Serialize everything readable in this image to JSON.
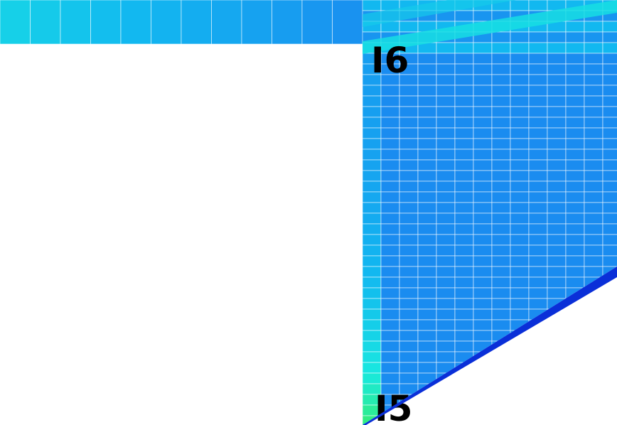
{
  "labels": {
    "node_top": "I6",
    "node_bottom": "I5"
  },
  "colors": {
    "background": "#ffffff",
    "mesh_lines": "#ffffff",
    "edge_strip": "#0a2fd8",
    "colormap": [
      "#1f78e8",
      "#1a8cf0",
      "#12b8f0",
      "#19e8e0",
      "#3aef60",
      "#36e81c",
      "#aef020",
      "#fff21a",
      "#ffae18",
      "#ff5516",
      "#ee1111"
    ]
  }
}
